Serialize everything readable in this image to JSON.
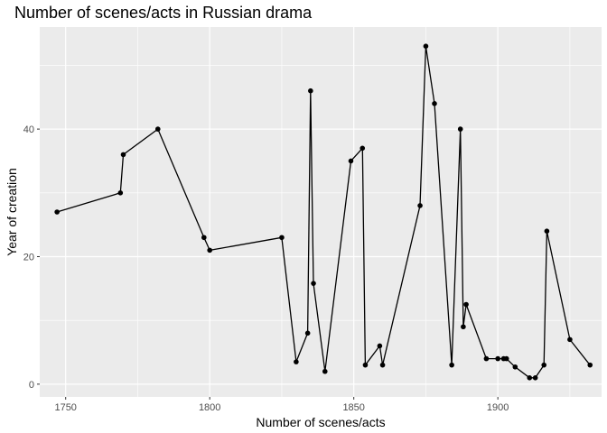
{
  "chart_data": {
    "type": "line",
    "title": "Number of scenes/acts in Russian drama",
    "xlabel": "Number of scenes/acts",
    "ylabel": "Year of creation",
    "xlim": [
      1741,
      1936
    ],
    "ylim": [
      -2,
      56
    ],
    "x_ticks": [
      1750,
      1800,
      1850,
      1900
    ],
    "y_ticks": [
      0,
      20,
      40
    ],
    "x_minor_ticks": [
      1775,
      1825,
      1875,
      1925
    ],
    "y_minor_ticks": [
      10,
      30,
      50
    ],
    "grid": true,
    "legend": "none",
    "colors": {
      "panel": "#ebebeb",
      "grid": "#ffffff",
      "line": "#000000"
    },
    "series": [
      {
        "x": [
          1747,
          1769,
          1770,
          1782,
          1798,
          1800,
          1825,
          1830,
          1834,
          1835,
          1836,
          1840,
          1849,
          1853,
          1854,
          1859,
          1860,
          1873,
          1875,
          1878,
          1884,
          1887,
          1888,
          1889,
          1896,
          1900,
          1902,
          1903,
          1906,
          1911,
          1913,
          1916,
          1917,
          1925,
          1932
        ],
        "y": [
          27,
          30,
          36,
          40,
          23,
          21,
          23,
          3.5,
          8,
          46,
          15.8,
          2,
          35,
          37,
          3,
          6,
          3,
          28,
          53,
          44,
          3,
          40,
          9,
          12.5,
          4,
          4,
          4,
          4,
          2.7,
          1,
          1,
          3,
          24,
          7,
          3
        ]
      }
    ]
  }
}
